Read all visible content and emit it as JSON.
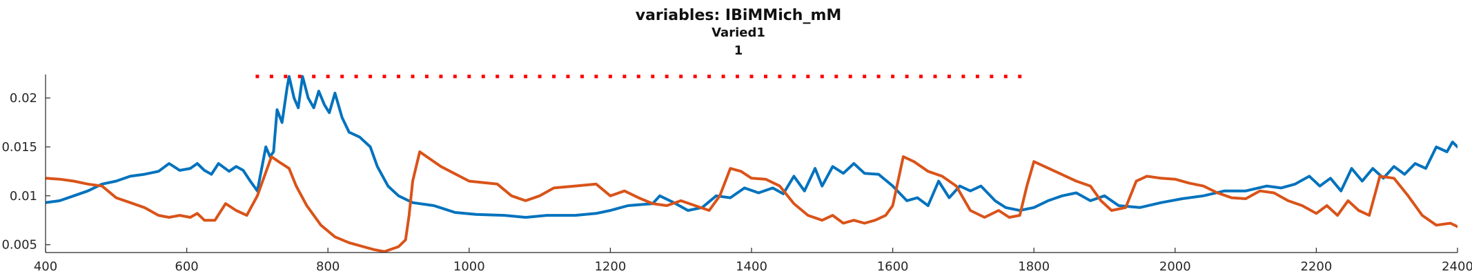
{
  "chart_data": {
    "type": "line",
    "title": "variables: IBiMMich_mM",
    "subtitle": "Varied1",
    "subtitle2": "1",
    "xlabel": "",
    "ylabel": "",
    "xlim": [
      400,
      2400
    ],
    "ylim": [
      0.0042,
      0.0224
    ],
    "x_ticks": [
      400,
      600,
      800,
      1000,
      1200,
      1400,
      1600,
      1800,
      2000,
      2200,
      2400
    ],
    "x_tick_labels": [
      "400",
      "600",
      "800",
      "1000",
      "1200",
      "1400",
      "1600",
      "1800",
      "2000",
      "2200",
      "2400"
    ],
    "y_ticks": [
      0.005,
      0.01,
      0.015,
      0.02
    ],
    "y_tick_labels": [
      "0.005",
      "0.01",
      "0.015",
      "0.02"
    ],
    "grid": false,
    "legend": "none",
    "dotted_marker": {
      "color": "#ff0000",
      "y": 0.0222,
      "x_start": 700,
      "x_end": 1780
    },
    "series": [
      {
        "color": "#0072bd",
        "points": [
          [
            400,
            0.0093
          ],
          [
            420,
            0.0095
          ],
          [
            440,
            0.01
          ],
          [
            460,
            0.0105
          ],
          [
            480,
            0.0112
          ],
          [
            500,
            0.0115
          ],
          [
            520,
            0.012
          ],
          [
            540,
            0.0122
          ],
          [
            560,
            0.0125
          ],
          [
            575,
            0.0133
          ],
          [
            590,
            0.0126
          ],
          [
            605,
            0.0128
          ],
          [
            615,
            0.0133
          ],
          [
            625,
            0.0126
          ],
          [
            635,
            0.0122
          ],
          [
            645,
            0.0133
          ],
          [
            660,
            0.0125
          ],
          [
            670,
            0.013
          ],
          [
            680,
            0.0126
          ],
          [
            690,
            0.0115
          ],
          [
            700,
            0.0105
          ],
          [
            708,
            0.0135
          ],
          [
            712,
            0.015
          ],
          [
            718,
            0.014
          ],
          [
            723,
            0.0145
          ],
          [
            728,
            0.0188
          ],
          [
            735,
            0.0175
          ],
          [
            742,
            0.021
          ],
          [
            745,
            0.0222
          ],
          [
            752,
            0.02
          ],
          [
            758,
            0.019
          ],
          [
            764,
            0.0222
          ],
          [
            772,
            0.02
          ],
          [
            780,
            0.019
          ],
          [
            787,
            0.0207
          ],
          [
            795,
            0.0193
          ],
          [
            802,
            0.0185
          ],
          [
            810,
            0.0205
          ],
          [
            820,
            0.018
          ],
          [
            830,
            0.0165
          ],
          [
            845,
            0.016
          ],
          [
            860,
            0.015
          ],
          [
            870,
            0.013
          ],
          [
            885,
            0.011
          ],
          [
            900,
            0.01
          ],
          [
            920,
            0.0093
          ],
          [
            950,
            0.009
          ],
          [
            980,
            0.0083
          ],
          [
            1010,
            0.0081
          ],
          [
            1050,
            0.008
          ],
          [
            1080,
            0.0078
          ],
          [
            1110,
            0.008
          ],
          [
            1150,
            0.008
          ],
          [
            1180,
            0.0082
          ],
          [
            1200,
            0.0085
          ],
          [
            1225,
            0.009
          ],
          [
            1260,
            0.0092
          ],
          [
            1270,
            0.01
          ],
          [
            1290,
            0.0093
          ],
          [
            1310,
            0.0085
          ],
          [
            1330,
            0.0088
          ],
          [
            1350,
            0.01
          ],
          [
            1370,
            0.0098
          ],
          [
            1390,
            0.0108
          ],
          [
            1410,
            0.0103
          ],
          [
            1430,
            0.0108
          ],
          [
            1445,
            0.0102
          ],
          [
            1460,
            0.012
          ],
          [
            1475,
            0.0105
          ],
          [
            1490,
            0.0128
          ],
          [
            1500,
            0.011
          ],
          [
            1515,
            0.013
          ],
          [
            1530,
            0.0123
          ],
          [
            1545,
            0.0133
          ],
          [
            1560,
            0.0123
          ],
          [
            1580,
            0.0122
          ],
          [
            1600,
            0.011
          ],
          [
            1620,
            0.0095
          ],
          [
            1635,
            0.0098
          ],
          [
            1650,
            0.009
          ],
          [
            1665,
            0.0115
          ],
          [
            1680,
            0.0098
          ],
          [
            1695,
            0.011
          ],
          [
            1710,
            0.0105
          ],
          [
            1725,
            0.011
          ],
          [
            1745,
            0.0095
          ],
          [
            1760,
            0.0088
          ],
          [
            1780,
            0.0085
          ],
          [
            1800,
            0.0088
          ],
          [
            1820,
            0.0095
          ],
          [
            1840,
            0.01
          ],
          [
            1860,
            0.0103
          ],
          [
            1880,
            0.0095
          ],
          [
            1900,
            0.01
          ],
          [
            1920,
            0.009
          ],
          [
            1950,
            0.0088
          ],
          [
            1980,
            0.0093
          ],
          [
            2010,
            0.0097
          ],
          [
            2040,
            0.01
          ],
          [
            2070,
            0.0105
          ],
          [
            2100,
            0.0105
          ],
          [
            2130,
            0.011
          ],
          [
            2150,
            0.0108
          ],
          [
            2170,
            0.0112
          ],
          [
            2190,
            0.012
          ],
          [
            2205,
            0.011
          ],
          [
            2220,
            0.0118
          ],
          [
            2235,
            0.0105
          ],
          [
            2250,
            0.0128
          ],
          [
            2265,
            0.0115
          ],
          [
            2280,
            0.0128
          ],
          [
            2295,
            0.0118
          ],
          [
            2310,
            0.013
          ],
          [
            2325,
            0.0122
          ],
          [
            2340,
            0.0133
          ],
          [
            2355,
            0.0128
          ],
          [
            2370,
            0.015
          ],
          [
            2385,
            0.0145
          ],
          [
            2393,
            0.0155
          ],
          [
            2400,
            0.015
          ]
        ]
      },
      {
        "color": "#d95319",
        "points": [
          [
            400,
            0.0118
          ],
          [
            420,
            0.0117
          ],
          [
            440,
            0.0115
          ],
          [
            460,
            0.0112
          ],
          [
            480,
            0.011
          ],
          [
            500,
            0.0098
          ],
          [
            520,
            0.0093
          ],
          [
            540,
            0.0088
          ],
          [
            560,
            0.008
          ],
          [
            575,
            0.0078
          ],
          [
            590,
            0.008
          ],
          [
            605,
            0.0078
          ],
          [
            615,
            0.0082
          ],
          [
            625,
            0.0075
          ],
          [
            640,
            0.0075
          ],
          [
            655,
            0.0092
          ],
          [
            670,
            0.0085
          ],
          [
            685,
            0.008
          ],
          [
            700,
            0.01
          ],
          [
            710,
            0.012
          ],
          [
            720,
            0.014
          ],
          [
            730,
            0.0135
          ],
          [
            745,
            0.0128
          ],
          [
            755,
            0.011
          ],
          [
            770,
            0.009
          ],
          [
            790,
            0.007
          ],
          [
            810,
            0.0058
          ],
          [
            830,
            0.0052
          ],
          [
            850,
            0.0048
          ],
          [
            865,
            0.0045
          ],
          [
            880,
            0.0043
          ],
          [
            900,
            0.0048
          ],
          [
            910,
            0.0055
          ],
          [
            915,
            0.008
          ],
          [
            920,
            0.0115
          ],
          [
            930,
            0.0145
          ],
          [
            960,
            0.013
          ],
          [
            1000,
            0.0115
          ],
          [
            1040,
            0.0112
          ],
          [
            1060,
            0.01
          ],
          [
            1080,
            0.0095
          ],
          [
            1100,
            0.01
          ],
          [
            1120,
            0.0108
          ],
          [
            1150,
            0.011
          ],
          [
            1180,
            0.0112
          ],
          [
            1200,
            0.01
          ],
          [
            1220,
            0.0105
          ],
          [
            1240,
            0.0098
          ],
          [
            1260,
            0.0092
          ],
          [
            1280,
            0.009
          ],
          [
            1300,
            0.0095
          ],
          [
            1320,
            0.009
          ],
          [
            1340,
            0.0085
          ],
          [
            1355,
            0.01
          ],
          [
            1370,
            0.0128
          ],
          [
            1385,
            0.0125
          ],
          [
            1400,
            0.0118
          ],
          [
            1420,
            0.0117
          ],
          [
            1440,
            0.011
          ],
          [
            1460,
            0.0092
          ],
          [
            1480,
            0.008
          ],
          [
            1500,
            0.0075
          ],
          [
            1515,
            0.008
          ],
          [
            1530,
            0.0072
          ],
          [
            1545,
            0.0075
          ],
          [
            1560,
            0.0072
          ],
          [
            1575,
            0.0075
          ],
          [
            1590,
            0.008
          ],
          [
            1600,
            0.009
          ],
          [
            1615,
            0.014
          ],
          [
            1630,
            0.0135
          ],
          [
            1650,
            0.0125
          ],
          [
            1670,
            0.012
          ],
          [
            1690,
            0.011
          ],
          [
            1710,
            0.0085
          ],
          [
            1730,
            0.0078
          ],
          [
            1750,
            0.0085
          ],
          [
            1765,
            0.0078
          ],
          [
            1780,
            0.008
          ],
          [
            1790,
            0.011
          ],
          [
            1800,
            0.0135
          ],
          [
            1830,
            0.0125
          ],
          [
            1860,
            0.0115
          ],
          [
            1880,
            0.011
          ],
          [
            1895,
            0.0095
          ],
          [
            1910,
            0.0085
          ],
          [
            1930,
            0.0088
          ],
          [
            1945,
            0.0115
          ],
          [
            1960,
            0.012
          ],
          [
            1980,
            0.0118
          ],
          [
            2000,
            0.0117
          ],
          [
            2020,
            0.0113
          ],
          [
            2040,
            0.011
          ],
          [
            2060,
            0.0103
          ],
          [
            2080,
            0.0098
          ],
          [
            2100,
            0.0097
          ],
          [
            2120,
            0.0105
          ],
          [
            2140,
            0.0103
          ],
          [
            2160,
            0.0095
          ],
          [
            2180,
            0.009
          ],
          [
            2200,
            0.0082
          ],
          [
            2215,
            0.009
          ],
          [
            2230,
            0.008
          ],
          [
            2245,
            0.0095
          ],
          [
            2260,
            0.0085
          ],
          [
            2275,
            0.008
          ],
          [
            2290,
            0.012
          ],
          [
            2310,
            0.0118
          ],
          [
            2330,
            0.01
          ],
          [
            2350,
            0.008
          ],
          [
            2370,
            0.007
          ],
          [
            2390,
            0.0072
          ],
          [
            2410,
            0.0065
          ],
          [
            2425,
            0.007
          ],
          [
            2440,
            0.0066
          ],
          [
            2460,
            0.0068
          ],
          [
            2480,
            0.0072
          ],
          [
            2500,
            0.007
          ]
        ]
      }
    ]
  }
}
